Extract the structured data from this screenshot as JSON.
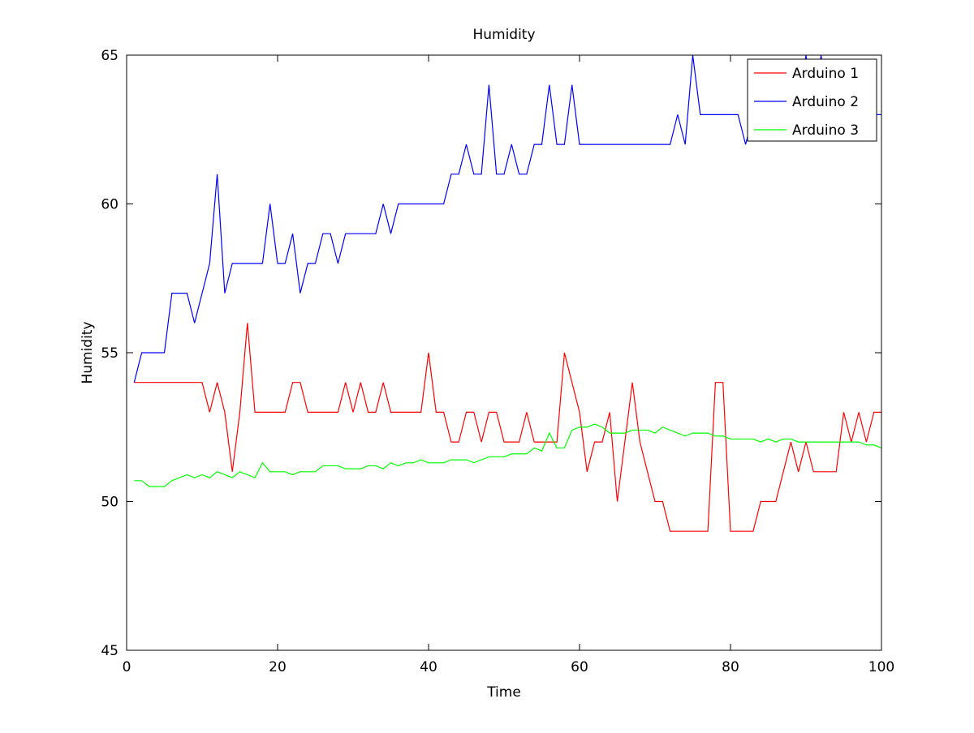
{
  "chart_data": {
    "type": "line",
    "title": "Humidity",
    "xlabel": "Time",
    "ylabel": "Humidity",
    "xlim": [
      0,
      100
    ],
    "ylim": [
      45,
      65
    ],
    "xticks": [
      0,
      20,
      40,
      60,
      80,
      100
    ],
    "yticks": [
      45,
      50,
      55,
      60,
      65
    ],
    "grid": false,
    "legend_position": "top-right",
    "x": [
      1,
      2,
      3,
      4,
      5,
      6,
      7,
      8,
      9,
      10,
      11,
      12,
      13,
      14,
      15,
      16,
      17,
      18,
      19,
      20,
      21,
      22,
      23,
      24,
      25,
      26,
      27,
      28,
      29,
      30,
      31,
      32,
      33,
      34,
      35,
      36,
      37,
      38,
      39,
      40,
      41,
      42,
      43,
      44,
      45,
      46,
      47,
      48,
      49,
      50,
      51,
      52,
      53,
      54,
      55,
      56,
      57,
      58,
      59,
      60,
      61,
      62,
      63,
      64,
      65,
      66,
      67,
      68,
      69,
      70,
      71,
      72,
      73,
      74,
      75,
      76,
      77,
      78,
      79,
      80,
      81,
      82,
      83,
      84,
      85,
      86,
      87,
      88,
      89,
      90,
      91,
      92,
      93,
      94,
      95,
      96,
      97,
      98,
      99,
      100
    ],
    "series": [
      {
        "name": "Arduino 1",
        "color": "#ff0000",
        "values": [
          54,
          54,
          54,
          54,
          54,
          54,
          54,
          54,
          54,
          54,
          53,
          54,
          53,
          51,
          53,
          56,
          53,
          53,
          53,
          53,
          53,
          54,
          54,
          53,
          53,
          53,
          53,
          53,
          54,
          53,
          54,
          53,
          53,
          54,
          53,
          53,
          53,
          53,
          53,
          55,
          53,
          53,
          52,
          52,
          53,
          53,
          52,
          53,
          53,
          52,
          52,
          52,
          53,
          52,
          52,
          52,
          52,
          55,
          54,
          53,
          51,
          52,
          52,
          53,
          50,
          52,
          54,
          52,
          51,
          50,
          50,
          49,
          49,
          49,
          49,
          49,
          49,
          54,
          54,
          49,
          49,
          49,
          49,
          50,
          50,
          50,
          51,
          52,
          51,
          52,
          51,
          51,
          51,
          51,
          53,
          52,
          53,
          52,
          53,
          53
        ]
      },
      {
        "name": "Arduino 2",
        "color": "#0000ff",
        "values": [
          54,
          55,
          55,
          55,
          55,
          57,
          57,
          57,
          56,
          57,
          58,
          61,
          57,
          58,
          58,
          58,
          58,
          58,
          60,
          58,
          58,
          59,
          57,
          58,
          58,
          59,
          59,
          58,
          59,
          59,
          59,
          59,
          59,
          60,
          59,
          60,
          60,
          60,
          60,
          60,
          60,
          60,
          61,
          61,
          62,
          61,
          61,
          64,
          61,
          61,
          62,
          61,
          61,
          62,
          62,
          64,
          62,
          62,
          64,
          62,
          62,
          62,
          62,
          62,
          62,
          62,
          62,
          62,
          62,
          62,
          62,
          62,
          63,
          62,
          65,
          63,
          63,
          63,
          63,
          63,
          63,
          62,
          63,
          63,
          63,
          63,
          63,
          63,
          63,
          65,
          63,
          65,
          63,
          63,
          63,
          63,
          63,
          63,
          63,
          63
        ]
      },
      {
        "name": "Arduino 3",
        "color": "#00ff00",
        "values": [
          50.7,
          50.7,
          50.5,
          50.5,
          50.5,
          50.7,
          50.8,
          50.9,
          50.8,
          50.9,
          50.8,
          51.0,
          50.9,
          50.8,
          51.0,
          50.9,
          50.8,
          51.3,
          51.0,
          51.0,
          51.0,
          50.9,
          51.0,
          51.0,
          51.0,
          51.2,
          51.2,
          51.2,
          51.1,
          51.1,
          51.1,
          51.2,
          51.2,
          51.1,
          51.3,
          51.2,
          51.3,
          51.3,
          51.4,
          51.3,
          51.3,
          51.3,
          51.4,
          51.4,
          51.4,
          51.3,
          51.4,
          51.5,
          51.5,
          51.5,
          51.6,
          51.6,
          51.6,
          51.8,
          51.7,
          52.3,
          51.8,
          51.8,
          52.4,
          52.5,
          52.5,
          52.6,
          52.5,
          52.3,
          52.3,
          52.3,
          52.4,
          52.4,
          52.4,
          52.3,
          52.5,
          52.4,
          52.3,
          52.2,
          52.3,
          52.3,
          52.3,
          52.2,
          52.2,
          52.1,
          52.1,
          52.1,
          52.1,
          52.0,
          52.1,
          52.0,
          52.1,
          52.1,
          52.0,
          52.0,
          52.0,
          52.0,
          52.0,
          52.0,
          52.0,
          52.0,
          52.0,
          51.9,
          51.9,
          51.8
        ]
      }
    ]
  }
}
